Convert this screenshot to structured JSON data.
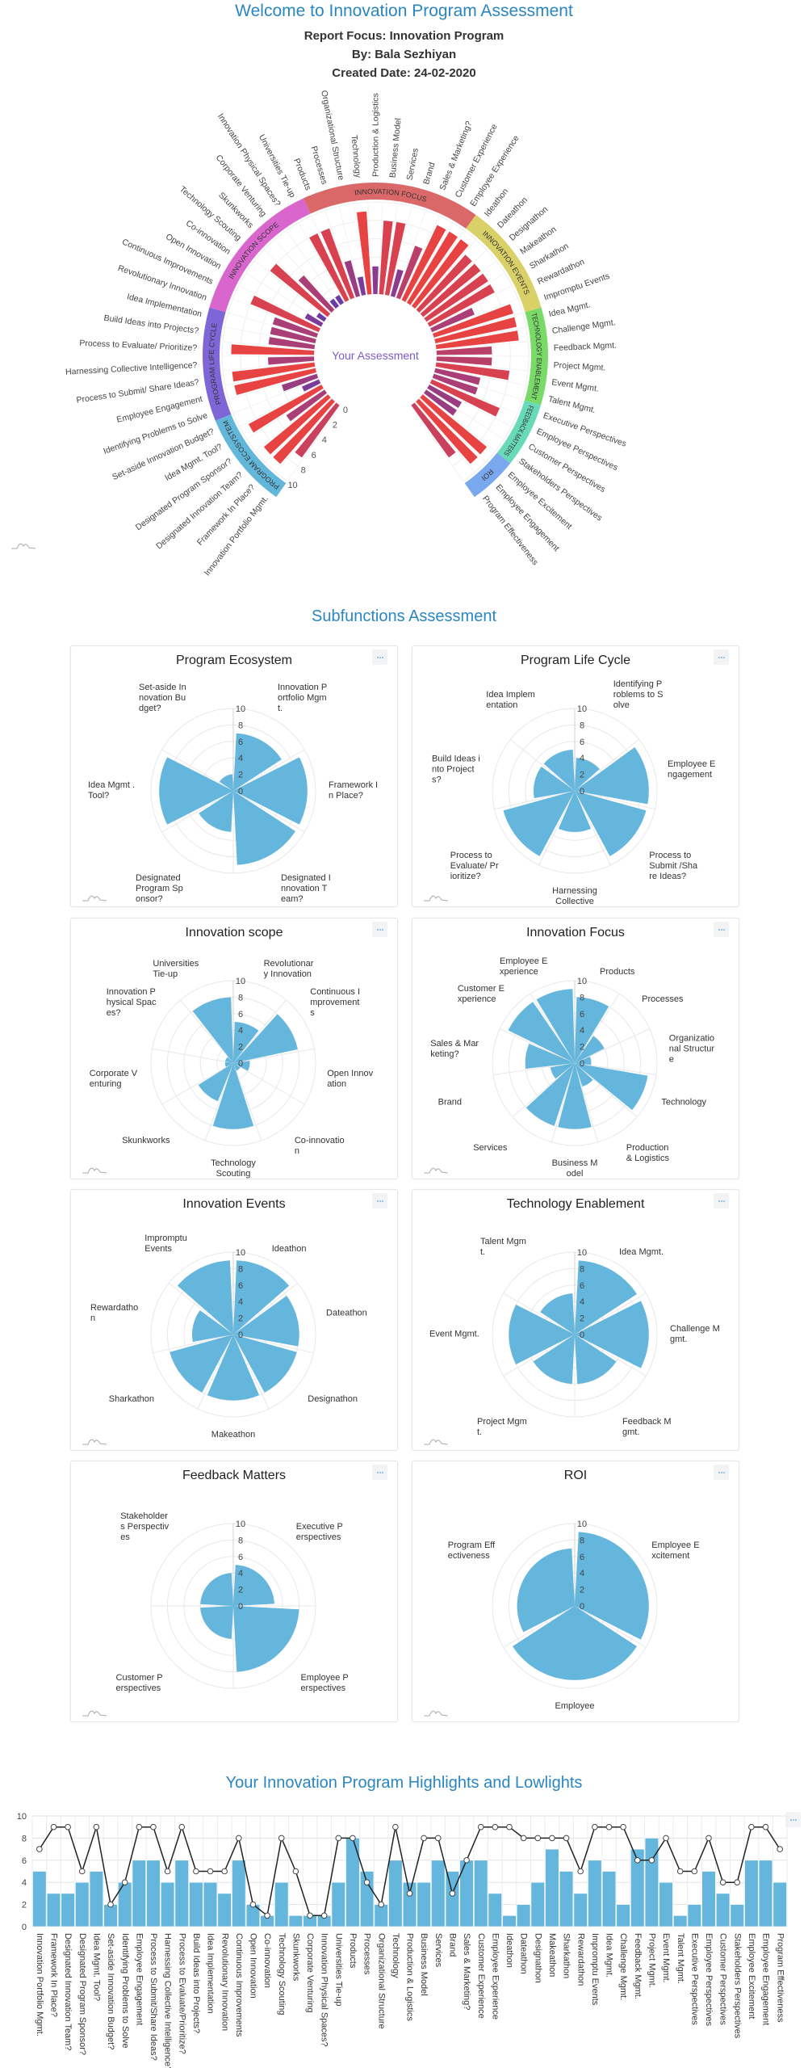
{
  "header": {
    "title": "Welcome to Innovation Program Assessment",
    "report_focus": "Report Focus: Innovation Program",
    "by": "By: Bala Sezhiyan",
    "created_date": "Created Date: 24-02-2020"
  },
  "subfunctions": {
    "title": "Subfunctions Assessment"
  },
  "highlights": {
    "title": "Your Innovation Program Highlights and Lowlights"
  },
  "icons": {
    "card_menu": "ellipsis-menu-icon",
    "chart_logo": "chart-logo-icon"
  },
  "colors": {
    "accent": "#2a86c0",
    "bar": "#65b6dc",
    "line": "#222222",
    "radial_low": "#6a3aa8",
    "radial_high": "#e84343",
    "center_label": "#7b5cc8"
  },
  "chart_data": [
    {
      "type": "bar",
      "polar": true,
      "center_label": "Your Assessment",
      "rlim": [
        0,
        10
      ],
      "rticks": [
        "0",
        "2",
        "4",
        "6",
        "8",
        "10"
      ],
      "groups": [
        {
          "name": "PROGRAM ECOSYSTEM",
          "color": "#62b6da",
          "categories": [
            "Innovation Portfolio Mgmt.",
            "Framework In Place?",
            "Designated Innovation Team?",
            "Designated Program Sponsor?",
            "Idea Mgmt. Tool?",
            "Set-aside Innovation Budget?"
          ],
          "values": [
            7,
            9,
            9,
            5,
            9,
            2
          ]
        },
        {
          "name": "PROGRAM LIFE CYCLE",
          "color": "#7e66d8",
          "categories": [
            "Identifying Problems to Solve",
            "Employee Engagement",
            "Process to Submit/ Share Ideas?",
            "Harnessing Collective Intelligence?",
            "Process to Evaluate/ Prioritize?",
            "Build Ideas into Projects?",
            "Idea Implementation"
          ],
          "values": [
            4,
            9,
            9,
            5,
            9,
            5,
            5
          ]
        },
        {
          "name": "INNOVATION SCOPE",
          "color": "#d966cc",
          "categories": [
            "Revolutionary Innovation",
            "Continuous Improvements",
            "Open Innovation",
            "Co-innovation",
            "Technology Scouting",
            "Skunkworks",
            "Corporate Venturing",
            "Innovation Physical Spaces?",
            "Universities Tie-up"
          ],
          "values": [
            5,
            8,
            2,
            1,
            8,
            5,
            1,
            1,
            8
          ]
        },
        {
          "name": "INNOVATION FOCUS",
          "color": "#da6868",
          "categories": [
            "Products",
            "Processes",
            "Organizational Structure",
            "Technology",
            "Production & Logistics",
            "Business Model",
            "Services",
            "Brand",
            "Sales & Marketing?",
            "Customer Experience",
            "Employee Experience"
          ],
          "values": [
            8,
            4,
            2,
            9,
            3,
            8,
            8,
            3,
            6,
            9,
            9
          ]
        },
        {
          "name": "INNOVATION EVENTS",
          "color": "#dad068",
          "categories": [
            "Ideathon",
            "Dateathon",
            "Designathon",
            "Makeathon",
            "Sharkathon",
            "Rewardathon",
            "Impromptu Events"
          ],
          "values": [
            9,
            8,
            8,
            8,
            8,
            5,
            9
          ]
        },
        {
          "name": "TECHNOLOGY ENABLEMENT",
          "color": "#79da68",
          "categories": [
            "Idea Mgmt.",
            "Challenge Mgmt.",
            "Feedback Mgmt.",
            "Project Mgmt.",
            "Event Mgmt.",
            "Talent Mgmt."
          ],
          "values": [
            9,
            9,
            6,
            6,
            8,
            5
          ]
        },
        {
          "name": "FEEDBACK MATTERS",
          "color": "#68dab8",
          "categories": [
            "Executive Perspectives",
            "Employee Perspectives",
            "Customer Perspectives",
            "Stakeholders Perspectives"
          ],
          "values": [
            5,
            8,
            4,
            4
          ]
        },
        {
          "name": "ROI",
          "color": "#7aa8ee",
          "categories": [
            "Employee Excitement",
            "Employee Engagement",
            "Program Effectiveness"
          ],
          "values": [
            9,
            9,
            7
          ]
        }
      ]
    },
    {
      "type": "bar",
      "polar": true,
      "title": "Program Ecosystem",
      "rlim": [
        0,
        10
      ],
      "rticks": [
        "0",
        "2",
        "4",
        "6",
        "8",
        "10"
      ],
      "categories": [
        "Innovation Portfolio Mgmt.",
        "Framework In Place?",
        "Designated Innovation Team?",
        "Designated Program Sponsor?",
        "Idea Mgmt . Tool?",
        "Set-aside Innovation Budget?"
      ],
      "values": [
        7,
        9,
        9,
        5,
        9,
        2
      ]
    },
    {
      "type": "bar",
      "polar": true,
      "title": "Program Life Cycle",
      "rlim": [
        0,
        10
      ],
      "rticks": [
        "0",
        "2",
        "4",
        "6",
        "8",
        "10"
      ],
      "categories": [
        "Identifying Problems to Solve",
        "Employee Engagement",
        "Process to Submit /Share Ideas?",
        "Harnessing Collective",
        "Process to Evaluate/ Prioritize?",
        "Build Ideas into Projects?",
        "Idea Implementation"
      ],
      "values": [
        4,
        9,
        9,
        5,
        9,
        5,
        5
      ]
    },
    {
      "type": "bar",
      "polar": true,
      "title": "Innovation scope",
      "rlim": [
        0,
        10
      ],
      "rticks": [
        "0",
        "2",
        "4",
        "6",
        "8",
        "10"
      ],
      "categories": [
        "Revolutionary Innovation",
        "Continuous Improvements",
        "Open Innovation",
        "Co-innovation",
        "Technology Scouting",
        "Skunkworks",
        "Corporate Venturing",
        "Innovation Physical Spaces?",
        "Universities Tie-up"
      ],
      "values": [
        5,
        8,
        2,
        1,
        8,
        5,
        1,
        1,
        8
      ]
    },
    {
      "type": "bar",
      "polar": true,
      "title": "Innovation Focus",
      "rlim": [
        0,
        10
      ],
      "rticks": [
        "0",
        "2",
        "4",
        "6",
        "8",
        "10"
      ],
      "categories": [
        "Products",
        "Processes",
        "Organizational Structure",
        "Technology",
        "Production & Logistics",
        "Business Model",
        "Services",
        "Brand",
        "Sales & Marketing?",
        "Customer Experience",
        "Employee Experience"
      ],
      "values": [
        8,
        4,
        2,
        9,
        3,
        8,
        8,
        3,
        6,
        9,
        9
      ]
    },
    {
      "type": "bar",
      "polar": true,
      "title": "Innovation Events",
      "rlim": [
        0,
        10
      ],
      "rticks": [
        "0",
        "2",
        "4",
        "6",
        "8",
        "10"
      ],
      "categories": [
        "Ideathon",
        "Dateathon",
        "Designathon",
        "Makeathon",
        "Sharkathon",
        "Rewardathon",
        "Impromptu Events"
      ],
      "values": [
        9,
        8,
        8,
        8,
        8,
        5,
        9
      ]
    },
    {
      "type": "bar",
      "polar": true,
      "title": "Technology Enablement",
      "rlim": [
        0,
        10
      ],
      "rticks": [
        "0",
        "2",
        "4",
        "6",
        "8",
        "10"
      ],
      "categories": [
        "Idea Mgmt.",
        "Challenge Mgmt.",
        "Feedback Mgmt.",
        "Project Mgmt.",
        "Event Mgmt.",
        "Talent Mgmt."
      ],
      "values": [
        9,
        9,
        6,
        6,
        8,
        5
      ]
    },
    {
      "type": "bar",
      "polar": true,
      "title": "Feedback Matters",
      "rlim": [
        0,
        10
      ],
      "rticks": [
        "0",
        "2",
        "4",
        "6",
        "8",
        "10"
      ],
      "categories": [
        "Executive Perspectives",
        "Employee Perspectives",
        "Customer Perspectives",
        "Stakeholders Perspectives"
      ],
      "values": [
        5,
        8,
        4,
        4
      ]
    },
    {
      "type": "bar",
      "polar": true,
      "title": "ROI",
      "rlim": [
        0,
        10
      ],
      "rticks": [
        "0",
        "2",
        "4",
        "6",
        "8",
        "10"
      ],
      "categories": [
        "Employee Excitement",
        "Employee",
        "Program Effectiveness"
      ],
      "values": [
        9,
        9,
        7
      ]
    },
    {
      "type": "bar",
      "title": "Your Innovation Program Highlights and Lowlights",
      "ylim": [
        0,
        10
      ],
      "yticks": [
        "0",
        "2",
        "4",
        "6",
        "8",
        "10"
      ],
      "grid": true,
      "categories": [
        "Innovation Portfolio Mgmt.",
        "Framework In Place?",
        "Designated Innovation Team?",
        "Designated Program Sponsor?",
        "Idea Mgmt. Tool?",
        "Set-aside Innovation Budget?",
        "Identifying Problems to Solve",
        "Employee Engagement",
        "Process to Submit/Share Ideas?",
        "Harnessing Collective Intelligence?",
        "Process to Evaluate/Prioritize?",
        "Build Ideas into Projects?",
        "Idea Implementation",
        "Revolutionary Innovation",
        "Continuous Improvements",
        "Open Innovation",
        "Co-innovation",
        "Technology Scouting",
        "Skunkworks",
        "Corporate Venturing",
        "Innovation Physical Spaces?",
        "Universities Tie-up",
        "Products",
        "Processes",
        "Organizational Structure",
        "Technology",
        "Production & Logistics",
        "Business Model",
        "Services",
        "Brand",
        "Sales & Marketing?",
        "Customer Experience",
        "Employee Experience",
        "Ideathon",
        "Dateathon",
        "Designathon",
        "Makeathon",
        "Sharkathon",
        "Rewardathon",
        "Impromptu Events",
        "Idea Mgmt.",
        "Challenge Mgmt.",
        "Feedback Mgmt.",
        "Project Mgmt.",
        "Event Mgmt.",
        "Talent Mgmt.",
        "Executive Perspectives",
        "Employee Perspectives",
        "Customer Perspectives",
        "Stakeholders Perspectives",
        "Employee Excitement",
        "Employee Engagement",
        "Program Effectiveness"
      ],
      "series": [
        {
          "type": "bar",
          "values": [
            5,
            3,
            3,
            4,
            5,
            2,
            4,
            6,
            6,
            4,
            6,
            4,
            4,
            3,
            6,
            2,
            1,
            4,
            1,
            1,
            1,
            4,
            8,
            5,
            2,
            6,
            4,
            4,
            6,
            5,
            6,
            6,
            3,
            1,
            2,
            4,
            7,
            5,
            3,
            6,
            5,
            2,
            7,
            8,
            4,
            1,
            2,
            5,
            3,
            2,
            6,
            6,
            4
          ]
        },
        {
          "type": "line",
          "values": [
            7,
            9,
            9,
            5,
            9,
            2,
            4,
            9,
            9,
            5,
            9,
            5,
            5,
            5,
            8,
            2,
            1,
            8,
            5,
            1,
            1,
            8,
            8,
            4,
            2,
            9,
            3,
            8,
            8,
            3,
            6,
            9,
            9,
            9,
            8,
            8,
            8,
            8,
            5,
            9,
            9,
            9,
            6,
            6,
            8,
            5,
            5,
            8,
            4,
            4,
            9,
            9,
            7
          ]
        }
      ]
    }
  ]
}
